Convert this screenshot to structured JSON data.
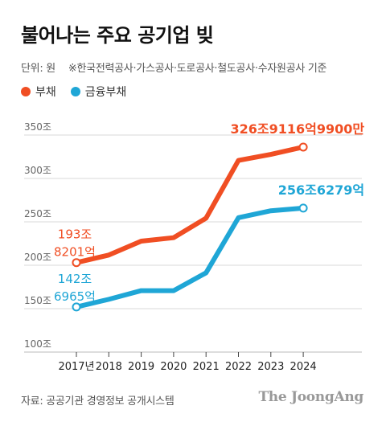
{
  "title": "불어나는 주요 공기업 빚",
  "unit_label": "단위: 원",
  "basis_note": "※한국전력공사·가스공사·도로공사·철도공사·수자원공사 기준",
  "source": "자료: 공공기관 경영정보 공개시스템",
  "logo": "The JoongAng",
  "colors": {
    "debt": "#f04e23",
    "financial_debt": "#1fa6d6",
    "grid": "#d9d9d9",
    "axis_text": "#666666"
  },
  "chart_data": {
    "type": "line",
    "categories": [
      "2017년",
      "2018",
      "2019",
      "2020",
      "2021",
      "2022",
      "2023",
      "2024"
    ],
    "ylim": [
      100,
      350
    ],
    "yticks": [
      "100조",
      "150조",
      "200조",
      "250조",
      "300조",
      "350조"
    ],
    "ytick_values": [
      100,
      150,
      200,
      250,
      300,
      350
    ],
    "grid": true,
    "legend_position": "top-left",
    "series": [
      {
        "name": "부채",
        "values": [
          193.8,
          202.5,
          218.5,
          222.5,
          245.0,
          311.5,
          318.5,
          326.9
        ],
        "start_label": [
          "193조",
          "8201억"
        ],
        "end_label": "326조9116억9900만"
      },
      {
        "name": "금융부채",
        "values": [
          142.7,
          151.5,
          161.5,
          161.5,
          182.0,
          245.5,
          253.5,
          256.6
        ],
        "start_label": [
          "142조",
          "6965억"
        ],
        "end_label": "256조6279억"
      }
    ]
  }
}
